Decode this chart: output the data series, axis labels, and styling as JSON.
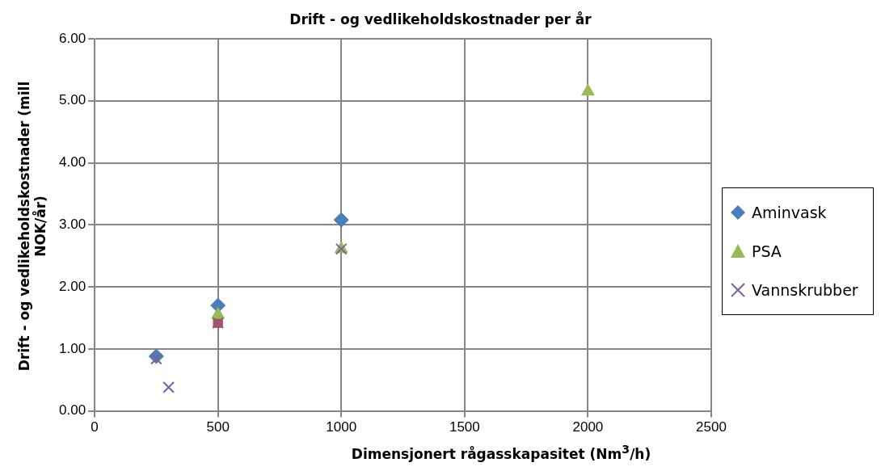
{
  "chart_data": {
    "type": "scatter",
    "title": "Drift - og vedlikeholdskostnader  per år",
    "xlabel": "Dimensjonert rågasskapasitet (Nm$^{3}$/h)",
    "ylabel": "Drift - og vedlikeholdskostnader (mill NOK/år)",
    "series": [
      {
        "name": "Aminvask",
        "color": "#4a7ebb",
        "marker": "diamond",
        "x": [
          250,
          500,
          1000
        ],
        "values": [
          0.88,
          1.7,
          3.08
        ]
      },
      {
        "color": "#be4b48",
        "marker": "square",
        "x": [
          500
        ],
        "values": [
          1.42
        ]
      },
      {
        "name": "PSA",
        "color": "#98b954",
        "marker": "triangle",
        "x": [
          500,
          1000,
          2000
        ],
        "values": [
          1.55,
          2.61,
          5.15
        ]
      },
      {
        "name": "Vannskrubber",
        "color": "#7d60a0",
        "marker": "cross",
        "x": [
          250,
          300,
          500,
          1000
        ],
        "values": [
          0.84,
          0.38,
          1.42,
          2.61
        ]
      }
    ],
    "xlim": [
      0,
      2500
    ],
    "xticks": [
      0,
      500,
      1000,
      1500,
      2000,
      2500
    ],
    "ylim": [
      0,
      6
    ],
    "yticks": [
      {
        "value": 0,
        "label": "0.00"
      },
      {
        "value": 1,
        "label": "1.00"
      },
      {
        "value": 2,
        "label": "2.00"
      },
      {
        "value": 3,
        "label": "3.00"
      },
      {
        "value": 4,
        "label": "4.00"
      },
      {
        "value": 5,
        "label": "5.00"
      },
      {
        "value": 6,
        "label": "6.00"
      }
    ],
    "grid": true,
    "legend": "right"
  }
}
